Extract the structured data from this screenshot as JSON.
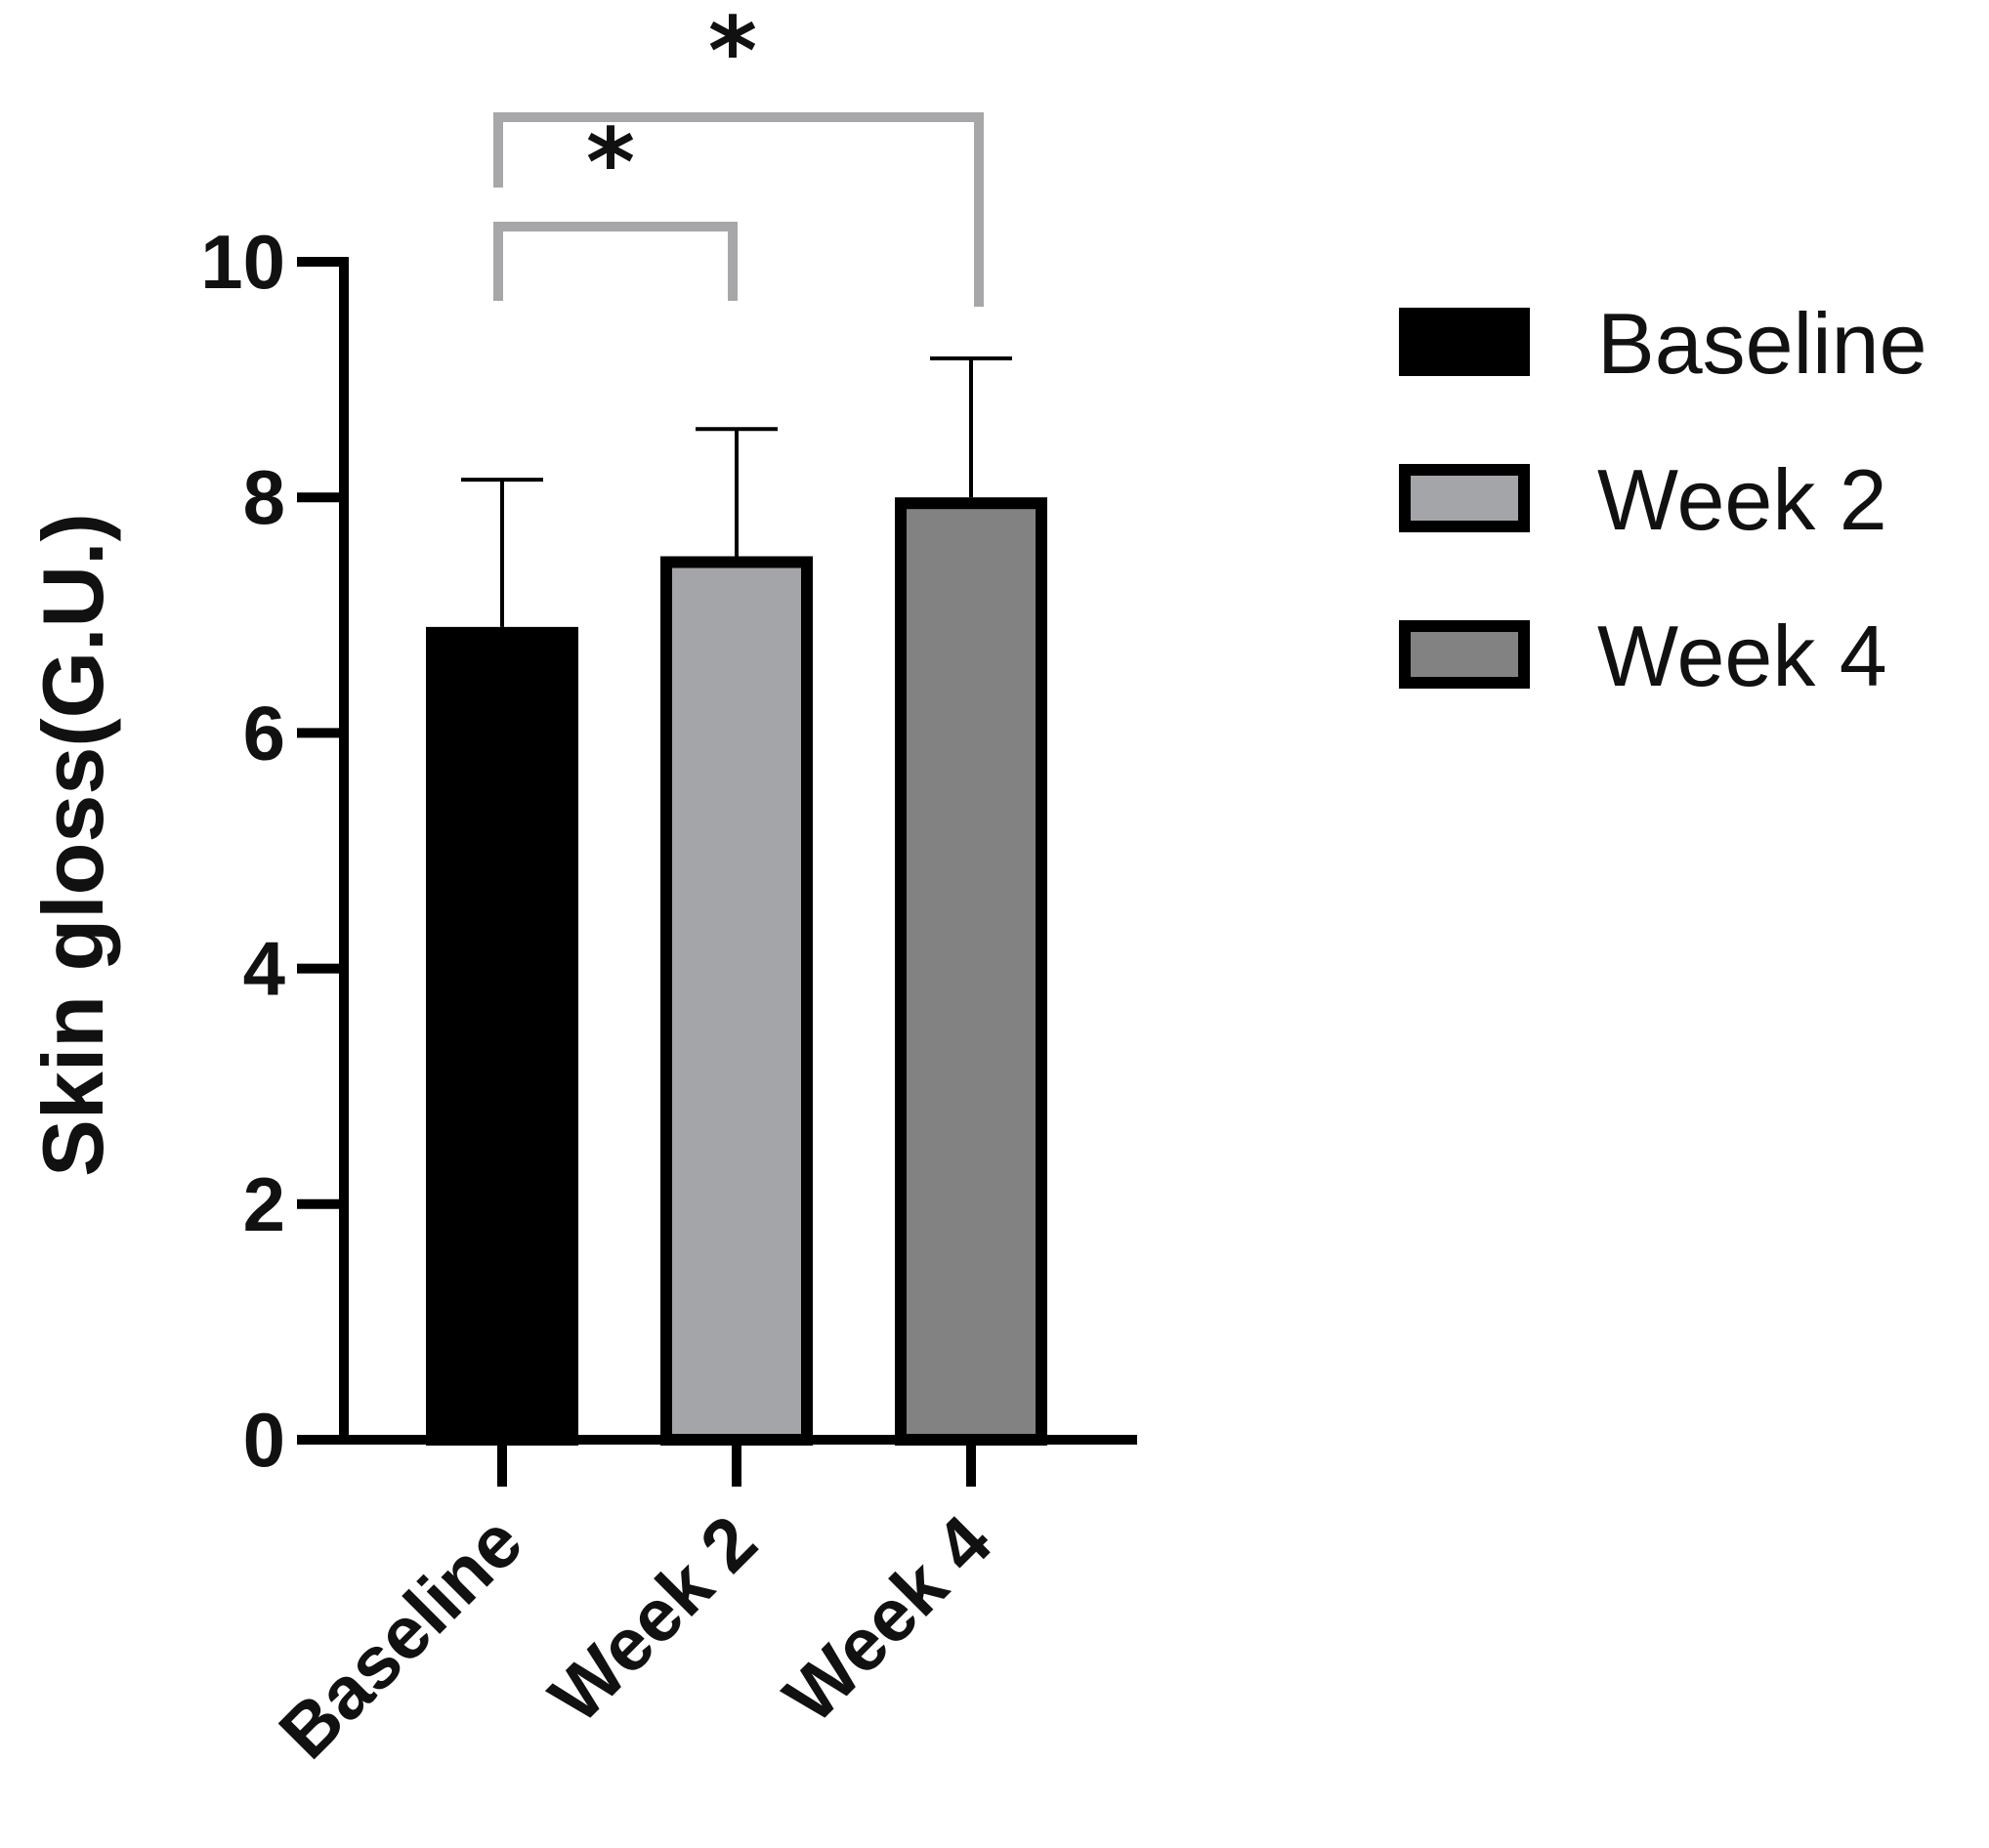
{
  "chart_data": {
    "type": "bar",
    "title": "",
    "xlabel": "",
    "ylabel": "Skin gloss(G.U.)",
    "ylim": [
      0,
      10
    ],
    "yticks": [
      0,
      2,
      4,
      6,
      8,
      10
    ],
    "categories": [
      "Baseline",
      "Week 2",
      "Week 4"
    ],
    "values": [
      6.9,
      7.5,
      8.0
    ],
    "errors": [
      1.25,
      1.08,
      1.18
    ],
    "bar_colors": [
      "#000000",
      "#a4a5a8",
      "#828282"
    ],
    "legend": {
      "placement": "right",
      "entries": [
        {
          "label": "Baseline",
          "color": "#000000"
        },
        {
          "label": "Week 2",
          "color": "#a4a5a8"
        },
        {
          "label": "Week 4",
          "color": "#828282"
        }
      ]
    },
    "significance": [
      {
        "from": "Baseline",
        "to": "Week 2",
        "label": "*"
      },
      {
        "from": "Baseline",
        "to": "Week 4",
        "label": "*"
      }
    ],
    "bracket_color": "#a7a7a9"
  }
}
